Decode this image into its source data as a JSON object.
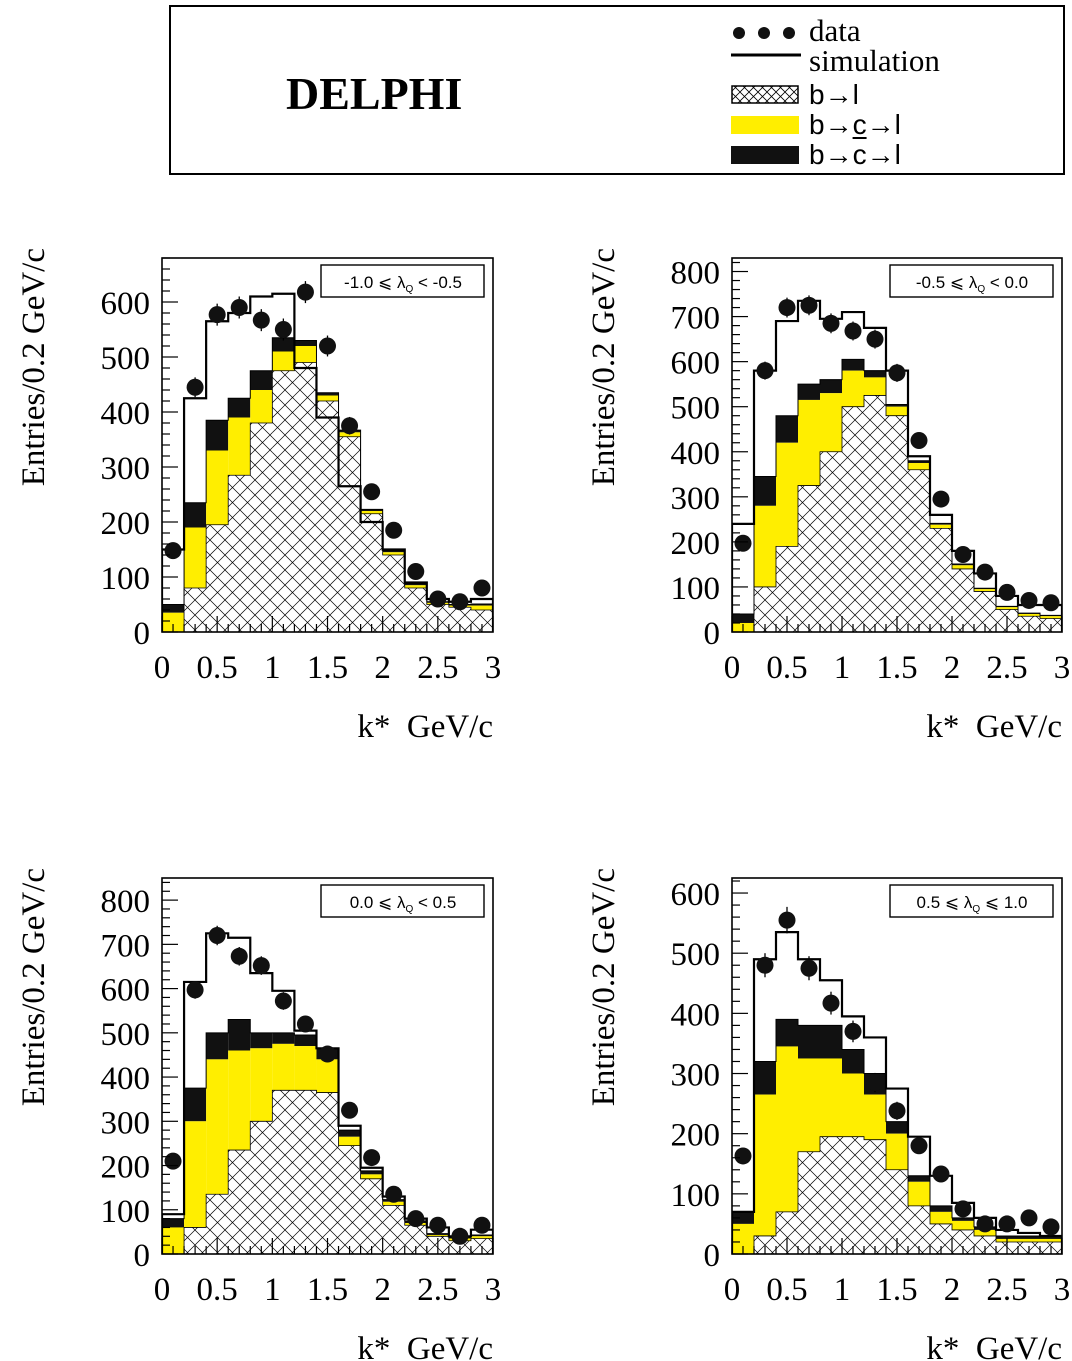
{
  "header": {
    "experiment": "DELPHI",
    "legend": [
      {
        "key": "data",
        "label": "data",
        "symbol": "dots"
      },
      {
        "key": "simulation",
        "label": "simulation",
        "symbol": "line"
      },
      {
        "key": "b_l",
        "label": "b→l",
        "symbol": "hatch"
      },
      {
        "key": "b_c_l",
        "label": "b→c→l",
        "symbol": "yellow"
      },
      {
        "key": "b_cbar_l",
        "label_pre": "b→",
        "label_bar": "c",
        "label_post": "→l",
        "symbol": "black"
      }
    ]
  },
  "colors": {
    "b_c_l": "#ffee00",
    "b_cbar_l": "#111111",
    "hatch": "#000000",
    "simulation": "#000000",
    "data": "#111111"
  },
  "chart_data": [
    {
      "type": "histogram",
      "panel": "top-left",
      "label": "-1.0 ≤ λ_Q < -0.5",
      "label_parts": [
        "-1.0 ⩽ ",
        "λ",
        "Q",
        " < -0.5"
      ],
      "xlabel": "k*  GeV/c",
      "ylabel": "Entries/0.2 GeV/c",
      "xlim": [
        0,
        3
      ],
      "ylim": [
        0,
        680
      ],
      "xticks": [
        0,
        0.5,
        1,
        1.5,
        2,
        2.5,
        3
      ],
      "xtick_labels": [
        "0",
        "0.5",
        "1",
        "1.5",
        "2",
        "2.5",
        "3"
      ],
      "yticks": [
        0,
        100,
        200,
        300,
        400,
        500,
        600
      ],
      "bin_edges": [
        0,
        0.2,
        0.4,
        0.6,
        0.8,
        1.0,
        1.2,
        1.4,
        1.6,
        1.8,
        2.0,
        2.2,
        2.4,
        2.6,
        2.8,
        3.0
      ],
      "b_to_l": [
        0,
        80,
        195,
        285,
        380,
        475,
        490,
        420,
        355,
        215,
        140,
        80,
        50,
        45,
        40
      ],
      "b_to_c_to_l": [
        35,
        110,
        135,
        105,
        60,
        35,
        30,
        10,
        8,
        5,
        5,
        5,
        3,
        3,
        8
      ],
      "b_to_cbar_to_l": [
        15,
        45,
        55,
        35,
        35,
        25,
        10,
        5,
        4,
        3,
        3,
        3,
        2,
        2,
        3
      ],
      "simulation": [
        150,
        425,
        565,
        580,
        610,
        615,
        480,
        390,
        265,
        200,
        150,
        90,
        60,
        55,
        60
      ],
      "data": [
        148,
        445,
        577,
        590,
        567,
        550,
        618,
        520,
        375,
        255,
        185,
        110,
        60,
        55,
        80
      ],
      "data_err": [
        15,
        18,
        20,
        20,
        20,
        20,
        20,
        19,
        16,
        13,
        11,
        9,
        7,
        7,
        8
      ]
    },
    {
      "type": "histogram",
      "panel": "top-right",
      "label": "-0.5 ≤ λ_Q < 0.0",
      "label_parts": [
        "-0.5 ⩽ ",
        "λ",
        "Q",
        " < 0.0"
      ],
      "xlabel": "k*  GeV/c",
      "ylabel": "Entries/0.2 GeV/c",
      "xlim": [
        0,
        3
      ],
      "ylim": [
        0,
        830
      ],
      "xticks": [
        0,
        0.5,
        1,
        1.5,
        2,
        2.5,
        3
      ],
      "xtick_labels": [
        "0",
        "0.5",
        "1",
        "1.5",
        "2",
        "2.5",
        "3"
      ],
      "yticks": [
        0,
        100,
        200,
        300,
        400,
        500,
        600,
        700,
        800
      ],
      "bin_edges": [
        0,
        0.2,
        0.4,
        0.6,
        0.8,
        1.0,
        1.2,
        1.4,
        1.6,
        1.8,
        2.0,
        2.2,
        2.4,
        2.6,
        2.8,
        3.0
      ],
      "b_to_l": [
        0,
        100,
        190,
        325,
        400,
        500,
        525,
        480,
        360,
        230,
        140,
        90,
        50,
        35,
        30
      ],
      "b_to_c_to_l": [
        20,
        180,
        230,
        190,
        130,
        80,
        40,
        20,
        15,
        8,
        8,
        5,
        5,
        5,
        5
      ],
      "b_to_cbar_to_l": [
        20,
        65,
        60,
        35,
        30,
        25,
        15,
        5,
        5,
        3,
        3,
        2,
        2,
        2,
        2
      ],
      "simulation": [
        240,
        580,
        690,
        735,
        695,
        710,
        675,
        580,
        390,
        260,
        180,
        130,
        80,
        60,
        60
      ],
      "data": [
        197,
        580,
        720,
        725,
        685,
        668,
        650,
        575,
        425,
        295,
        172,
        133,
        88,
        70,
        65
      ],
      "data_err": [
        15,
        20,
        22,
        22,
        22,
        21,
        21,
        20,
        17,
        14,
        11,
        10,
        8,
        7,
        7
      ]
    },
    {
      "type": "histogram",
      "panel": "bottom-left",
      "label": "0.0 ≤ λ_Q < 0.5",
      "label_parts": [
        "0.0 ⩽ ",
        "λ",
        "Q",
        " < 0.5"
      ],
      "xlabel": "k*  GeV/c",
      "ylabel": "Entries/0.2 GeV/c",
      "xlim": [
        0,
        3
      ],
      "ylim": [
        0,
        850
      ],
      "xticks": [
        0,
        0.5,
        1,
        1.5,
        2,
        2.5,
        3
      ],
      "xtick_labels": [
        "0",
        "0.5",
        "1",
        "1.5",
        "2",
        "2.5",
        "3"
      ],
      "yticks": [
        0,
        100,
        200,
        300,
        400,
        500,
        600,
        700,
        800
      ],
      "bin_edges": [
        0,
        0.2,
        0.4,
        0.6,
        0.8,
        1.0,
        1.2,
        1.4,
        1.6,
        1.8,
        2.0,
        2.2,
        2.4,
        2.6,
        2.8,
        3.0
      ],
      "b_to_l": [
        0,
        60,
        135,
        235,
        300,
        370,
        370,
        365,
        245,
        170,
        110,
        65,
        40,
        30,
        35
      ],
      "b_to_c_to_l": [
        60,
        240,
        305,
        225,
        165,
        105,
        100,
        75,
        20,
        10,
        8,
        5,
        3,
        5,
        5
      ],
      "b_to_cbar_to_l": [
        20,
        75,
        60,
        70,
        35,
        25,
        25,
        25,
        15,
        8,
        5,
        5,
        3,
        3,
        3
      ],
      "simulation": [
        90,
        615,
        725,
        715,
        635,
        595,
        505,
        465,
        290,
        195,
        130,
        80,
        60,
        40,
        55
      ],
      "data": [
        210,
        597,
        720,
        673,
        652,
        572,
        520,
        452,
        325,
        218,
        135,
        80,
        65,
        40,
        65
      ],
      "data_err": [
        15,
        20,
        22,
        21,
        21,
        20,
        19,
        18,
        15,
        13,
        10,
        8,
        7,
        6,
        7
      ]
    },
    {
      "type": "histogram",
      "panel": "bottom-right",
      "label": "0.5 ≤ λ_Q ≤ 1.0",
      "label_parts": [
        "0.5 ⩽ ",
        "λ",
        "Q",
        " ⩽ 1.0"
      ],
      "xlabel": "k*  GeV/c",
      "ylabel": "Entries/0.2 GeV/c",
      "xlim": [
        0,
        3
      ],
      "ylim": [
        0,
        625
      ],
      "xticks": [
        0,
        0.5,
        1,
        1.5,
        2,
        2.5,
        3
      ],
      "xtick_labels": [
        "0",
        "0.5",
        "1",
        "1.5",
        "2",
        "2.5",
        "3"
      ],
      "yticks": [
        0,
        100,
        200,
        300,
        400,
        500,
        600
      ],
      "bin_edges": [
        0,
        0.2,
        0.4,
        0.6,
        0.8,
        1.0,
        1.2,
        1.4,
        1.6,
        1.8,
        2.0,
        2.2,
        2.4,
        2.6,
        2.8,
        3.0
      ],
      "b_to_l": [
        0,
        30,
        70,
        170,
        195,
        195,
        190,
        140,
        80,
        50,
        40,
        30,
        20,
        20,
        20
      ],
      "b_to_c_to_l": [
        50,
        235,
        275,
        155,
        130,
        105,
        75,
        60,
        40,
        20,
        15,
        10,
        5,
        5,
        5
      ],
      "b_to_cbar_to_l": [
        20,
        55,
        45,
        55,
        55,
        40,
        35,
        20,
        10,
        10,
        5,
        5,
        5,
        5,
        5
      ],
      "simulation": [
        70,
        490,
        535,
        490,
        455,
        395,
        360,
        275,
        195,
        130,
        85,
        60,
        40,
        35,
        30
      ],
      "data": [
        163,
        480,
        555,
        475,
        417,
        370,
        285,
        238,
        180,
        133,
        75,
        50,
        50,
        60,
        45
      ],
      "data_err": [
        13,
        20,
        22,
        20,
        19,
        18,
        16,
        15,
        13,
        11,
        8,
        7,
        7,
        7,
        6
      ]
    }
  ]
}
